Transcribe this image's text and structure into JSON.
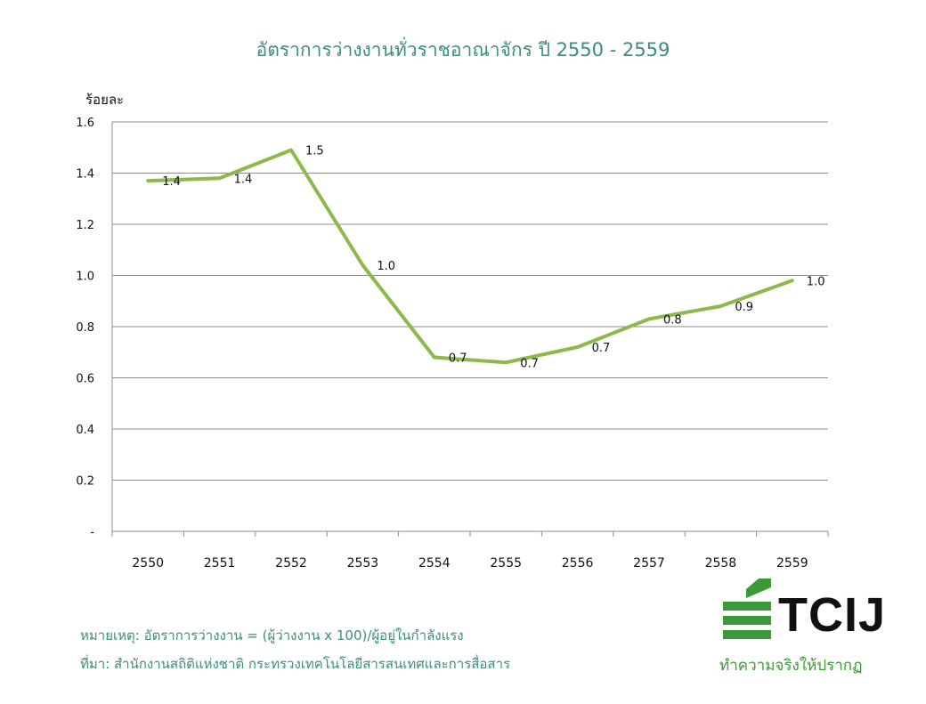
{
  "chart_data": {
    "type": "line",
    "title": "อัตราการว่างงานทั่วราชอาณาจักร ปี 2550 - 2559",
    "ylabel": "ร้อยละ",
    "xlabel": "",
    "categories": [
      "2550",
      "2551",
      "2552",
      "2553",
      "2554",
      "2555",
      "2556",
      "2557",
      "2558",
      "2559"
    ],
    "series": [
      {
        "values": [
          1.37,
          1.38,
          1.49,
          1.04,
          0.68,
          0.66,
          0.72,
          0.83,
          0.88,
          0.98
        ],
        "labels": [
          "1.4",
          "1.4",
          "1.5",
          "1.0",
          "0.7",
          "0.7",
          "0.7",
          "0.8",
          "0.9",
          "1.0"
        ],
        "color": "#8db84a"
      }
    ],
    "ylim": [
      0,
      1.6
    ],
    "yticks": [
      0,
      0.2,
      0.4,
      0.6,
      0.8,
      1.0,
      1.2,
      1.4,
      1.6
    ],
    "ytick_labels": [
      "-",
      "0.2",
      "0.4",
      "0.6",
      "0.8",
      "1.0",
      "1.2",
      "1.4",
      "1.6"
    ],
    "grid": true,
    "legend": "none"
  },
  "notes": {
    "line1": "หมายเหตุ: อัตราการว่างงาน = (ผู้ว่างงาน x 100)/ผู้อยู่ในกำลังแรง",
    "line2": "ที่มา: สำนักงานสถิติแห่งชาติ กระทรวงเทคโนโลยีสารสนเทศและการสื่อสาร"
  },
  "logo": {
    "name": "TCIJ",
    "tagline": "ทำความจริงให้ปรากฏ",
    "color": "#3a9a35"
  }
}
